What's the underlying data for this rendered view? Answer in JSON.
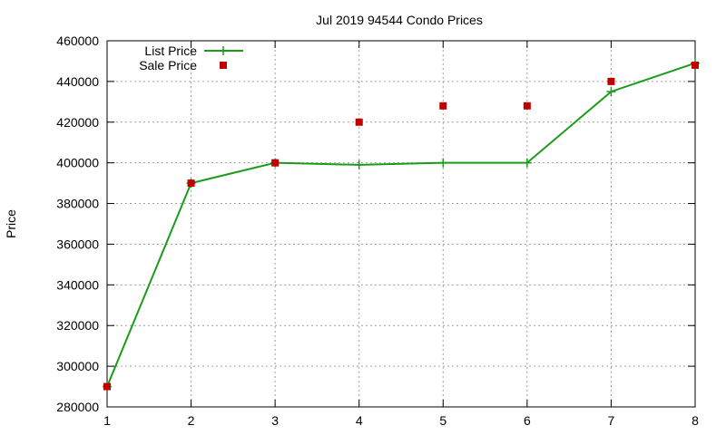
{
  "chart_data": {
    "type": "line",
    "title": "Jul 2019 94544 Condo Prices",
    "xlabel": "",
    "ylabel": "Price",
    "xlim": [
      1,
      8
    ],
    "ylim": [
      280000,
      460000
    ],
    "x_ticks": [
      1,
      2,
      3,
      4,
      5,
      6,
      7,
      8
    ],
    "y_ticks": [
      280000,
      300000,
      320000,
      340000,
      360000,
      380000,
      400000,
      420000,
      440000,
      460000
    ],
    "grid": true,
    "legend_position": "top-left",
    "series": [
      {
        "name": "List Price",
        "style": "line-with-plus-markers",
        "color": "#1a9c1a",
        "points": [
          [
            1,
            290000
          ],
          [
            2,
            390000
          ],
          [
            3,
            400000
          ],
          [
            4,
            399000
          ],
          [
            5,
            400000
          ],
          [
            6,
            400000
          ],
          [
            7,
            435000
          ],
          [
            8,
            449000
          ]
        ]
      },
      {
        "name": "Sale Price",
        "style": "square-markers",
        "color": "#c00000",
        "points": [
          [
            1,
            290000
          ],
          [
            2,
            390000
          ],
          [
            3,
            400000
          ],
          [
            4,
            420000
          ],
          [
            5,
            428000
          ],
          [
            6,
            428000
          ],
          [
            7,
            440000
          ],
          [
            8,
            448000
          ]
        ]
      }
    ]
  }
}
